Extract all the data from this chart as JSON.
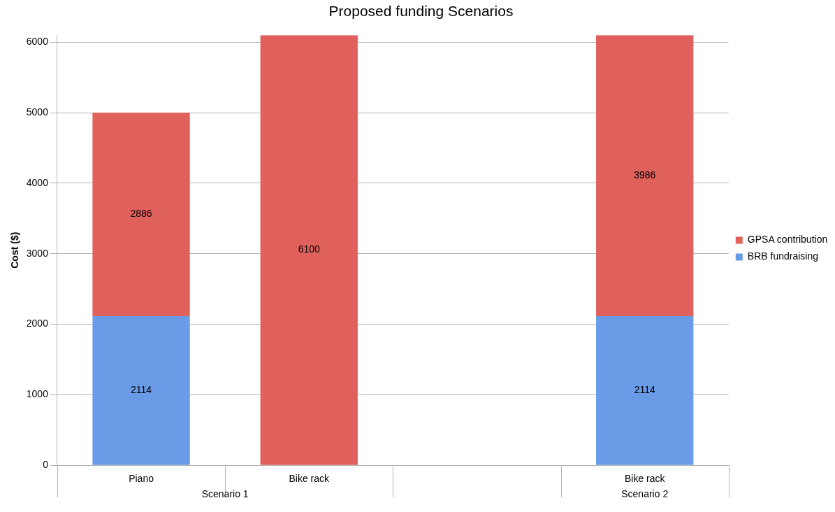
{
  "chart_data": {
    "type": "bar",
    "title": "Proposed funding Scenarios",
    "ylabel": "Cost ($)",
    "categories": [
      "Piano",
      "Bike rack",
      null,
      "Bike rack"
    ],
    "series": [
      {
        "name": "BRB fundraising",
        "color": "#6a9be6",
        "values": [
          2114,
          null,
          null,
          2114
        ]
      },
      {
        "name": "GPSA contribution",
        "color": "#e0605c",
        "values": [
          2886,
          6100,
          null,
          3986
        ]
      }
    ],
    "stacked": true,
    "ylim": [
      0,
      6100
    ],
    "yticks": [
      0,
      1000,
      2000,
      3000,
      4000,
      5000,
      6000
    ],
    "grid": "y",
    "legend": "right",
    "data_labels": true,
    "annotations": [
      "Scenario 1",
      "Scenario 2"
    ]
  }
}
